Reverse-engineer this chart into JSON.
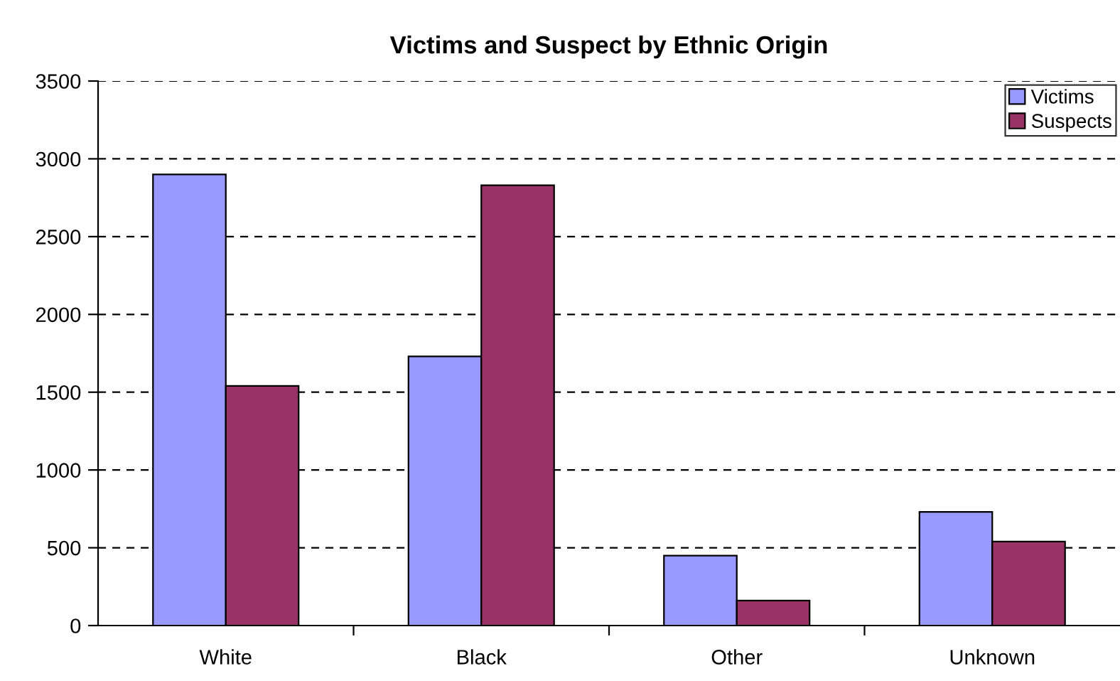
{
  "chart_data": {
    "type": "bar",
    "title": "Victims and Suspect by Ethnic Origin",
    "categories": [
      "White",
      "Black",
      "Other",
      "Unknown"
    ],
    "series": [
      {
        "name": "Victims",
        "color": "#9999ff",
        "values": [
          2900,
          1730,
          450,
          730
        ]
      },
      {
        "name": "Suspects",
        "color": "#993366",
        "values": [
          1540,
          2830,
          160,
          540
        ]
      }
    ],
    "ylim": [
      0,
      3500
    ],
    "yticks": [
      0,
      500,
      1000,
      1500,
      2000,
      2500,
      3000,
      3500
    ],
    "grid": "y",
    "legend": "top right"
  }
}
